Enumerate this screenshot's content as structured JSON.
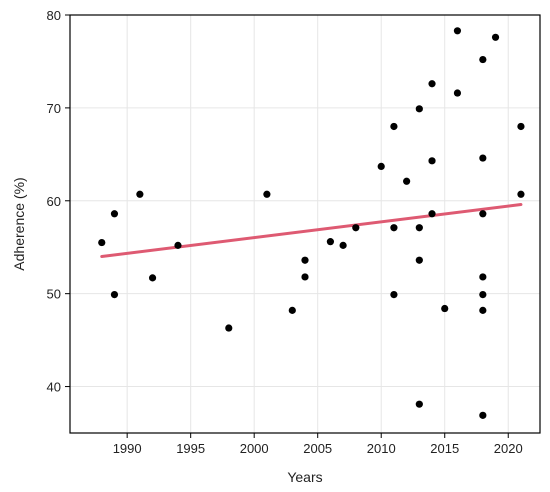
{
  "chart_data": {
    "type": "scatter",
    "title": "",
    "xlabel": "Years",
    "ylabel": "Adherence (%)",
    "xlim": [
      1985.5,
      2022.5
    ],
    "ylim": [
      35,
      80
    ],
    "xticks": [
      1990,
      1995,
      2000,
      2005,
      2010,
      2015,
      2020
    ],
    "yticks": [
      40,
      50,
      60,
      70,
      80
    ],
    "grid": true,
    "legend": "none",
    "point_color": "#000000",
    "trend_color": "#de5a72",
    "points": [
      {
        "x": 1988,
        "y": 55.5
      },
      {
        "x": 1989,
        "y": 58.6
      },
      {
        "x": 1989,
        "y": 49.9
      },
      {
        "x": 1991,
        "y": 60.7
      },
      {
        "x": 1992,
        "y": 51.7
      },
      {
        "x": 1994,
        "y": 55.2
      },
      {
        "x": 1998,
        "y": 46.3
      },
      {
        "x": 2001,
        "y": 60.7
      },
      {
        "x": 2003,
        "y": 48.2
      },
      {
        "x": 2004,
        "y": 53.6
      },
      {
        "x": 2004,
        "y": 51.8
      },
      {
        "x": 2006,
        "y": 55.6
      },
      {
        "x": 2007,
        "y": 55.2
      },
      {
        "x": 2008,
        "y": 57.1
      },
      {
        "x": 2010,
        "y": 63.7
      },
      {
        "x": 2011,
        "y": 68.0
      },
      {
        "x": 2011,
        "y": 57.1
      },
      {
        "x": 2011,
        "y": 49.9
      },
      {
        "x": 2012,
        "y": 62.1
      },
      {
        "x": 2013,
        "y": 69.9
      },
      {
        "x": 2013,
        "y": 57.1
      },
      {
        "x": 2013,
        "y": 53.6
      },
      {
        "x": 2013,
        "y": 38.1
      },
      {
        "x": 2014,
        "y": 72.6
      },
      {
        "x": 2014,
        "y": 64.3
      },
      {
        "x": 2014,
        "y": 58.6
      },
      {
        "x": 2015,
        "y": 48.4
      },
      {
        "x": 2016,
        "y": 78.3
      },
      {
        "x": 2016,
        "y": 71.6
      },
      {
        "x": 2018,
        "y": 75.2
      },
      {
        "x": 2018,
        "y": 64.6
      },
      {
        "x": 2018,
        "y": 58.6
      },
      {
        "x": 2018,
        "y": 51.8
      },
      {
        "x": 2018,
        "y": 49.9
      },
      {
        "x": 2018,
        "y": 48.2
      },
      {
        "x": 2018,
        "y": 36.9
      },
      {
        "x": 2019,
        "y": 77.6
      },
      {
        "x": 2021,
        "y": 68.0
      },
      {
        "x": 2021,
        "y": 60.7
      }
    ],
    "trend_line": [
      {
        "x": 1988,
        "y": 54.0
      },
      {
        "x": 2021,
        "y": 59.6
      }
    ]
  }
}
